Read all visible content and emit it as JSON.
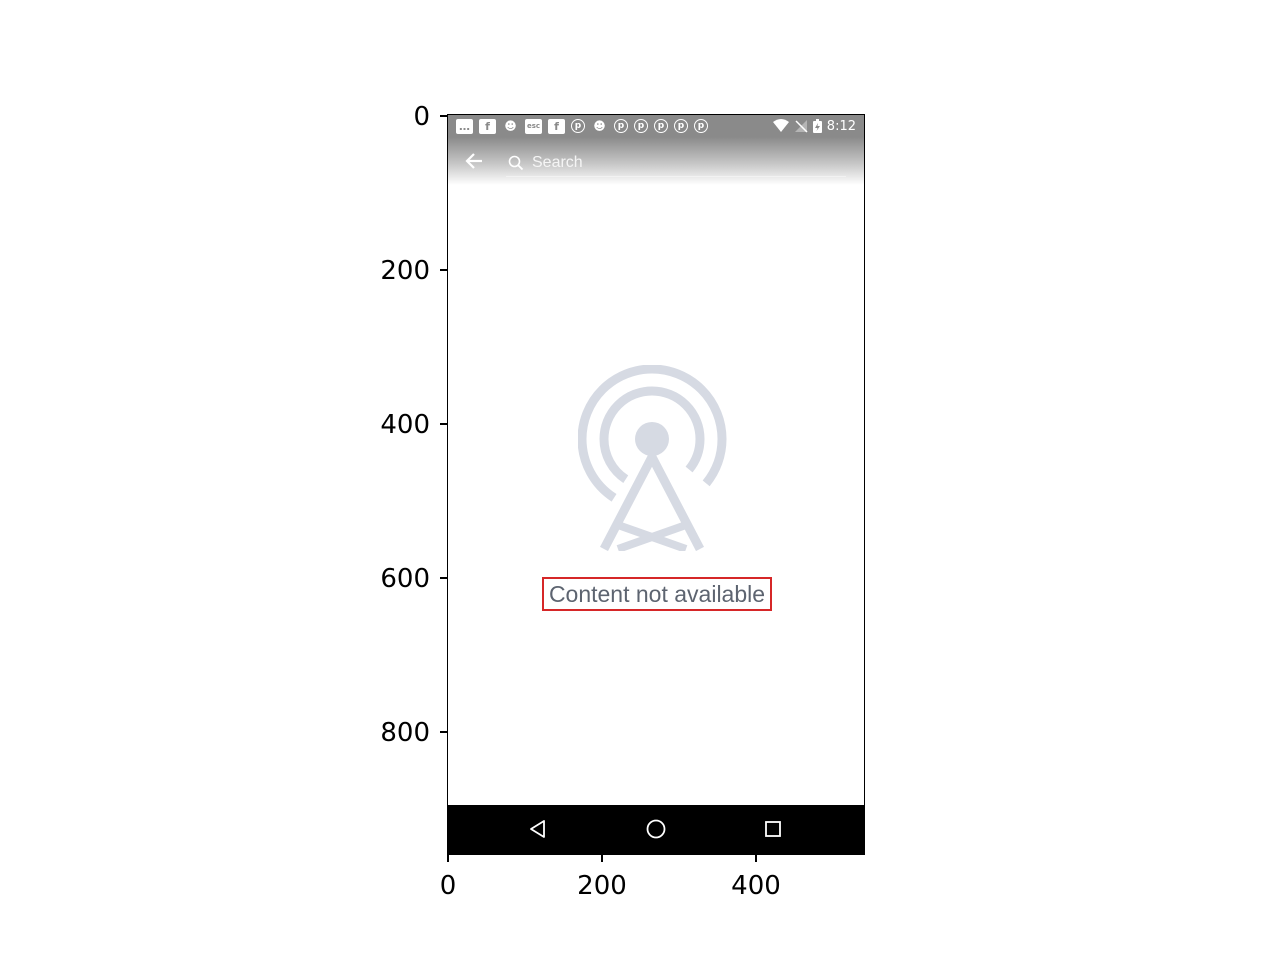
{
  "status_bar": {
    "time": "8:12",
    "notification_icons": [
      {
        "icon": "message-icon",
        "glyph": "…",
        "style": "box"
      },
      {
        "icon": "facebook-icon",
        "glyph": "f",
        "style": "box"
      },
      {
        "icon": "cat-icon",
        "glyph": "☻",
        "style": "plain"
      },
      {
        "icon": "app-icon",
        "glyph": "esc",
        "style": "box"
      },
      {
        "icon": "facebook-icon",
        "glyph": "f",
        "style": "box"
      },
      {
        "icon": "pinterest-icon",
        "glyph": "p",
        "style": "circle"
      },
      {
        "icon": "cat-icon",
        "glyph": "☻",
        "style": "plain"
      },
      {
        "icon": "pinterest-icon",
        "glyph": "p",
        "style": "circle"
      },
      {
        "icon": "pinterest-icon",
        "glyph": "p",
        "style": "circle"
      },
      {
        "icon": "pinterest-icon",
        "glyph": "p",
        "style": "circle"
      },
      {
        "icon": "pinterest-icon",
        "glyph": "p",
        "style": "circle"
      },
      {
        "icon": "pinterest-icon",
        "glyph": "p",
        "style": "circle"
      }
    ]
  },
  "toolbar": {
    "search_placeholder": "Search"
  },
  "content": {
    "empty_message": "Content not available",
    "icon": "broadcast-tower-icon",
    "icon_color": "#d6dae3",
    "text_color": "#5d6470"
  },
  "navigation": {
    "back": "nav-back-icon",
    "home": "nav-home-icon",
    "recents": "nav-recents-icon"
  },
  "axes": {
    "y_ticks": [
      "0",
      "200",
      "400",
      "600",
      "800"
    ],
    "x_ticks": [
      "0",
      "200",
      "400"
    ]
  },
  "colors": {
    "highlight": "#d62728",
    "nav_bar": "#000000"
  }
}
